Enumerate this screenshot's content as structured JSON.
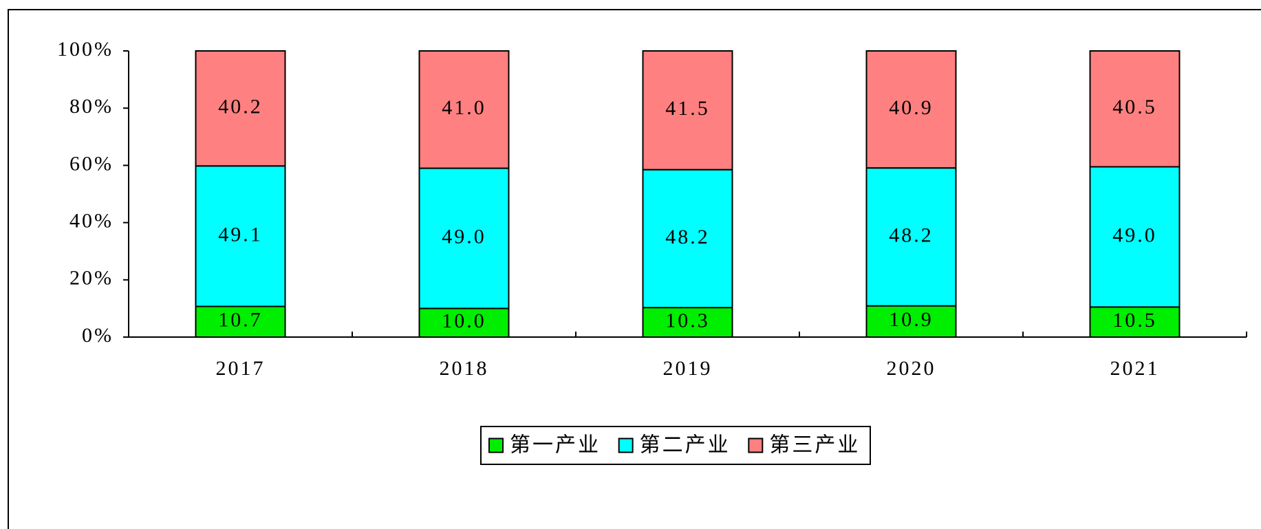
{
  "chart_data": {
    "type": "stacked_bar",
    "categories": [
      "2017",
      "2018",
      "2019",
      "2020",
      "2021"
    ],
    "series": [
      {
        "name": "第一产业",
        "color": "#00ee00",
        "values": [
          10.7,
          10.0,
          10.3,
          10.9,
          10.5
        ],
        "value_labels": [
          "10.7",
          "10.0",
          "10.3",
          "10.9",
          "10.5"
        ]
      },
      {
        "name": "第二产业",
        "color": "#00ffff",
        "values": [
          49.1,
          49.0,
          48.2,
          48.2,
          49.0
        ],
        "value_labels": [
          "49.1",
          "49.0",
          "48.2",
          "48.2",
          "49.0"
        ]
      },
      {
        "name": "第三产业",
        "color": "#ff8080",
        "values": [
          40.2,
          41.0,
          41.5,
          40.9,
          40.5
        ],
        "value_labels": [
          "40.2",
          "41.0",
          "41.5",
          "40.9",
          "40.5"
        ]
      }
    ],
    "ylim": [
      0,
      100
    ],
    "yticks": [
      {
        "value": 0,
        "label": "0%"
      },
      {
        "value": 20,
        "label": "20%"
      },
      {
        "value": 40,
        "label": "40%"
      },
      {
        "value": 60,
        "label": "60%"
      },
      {
        "value": 80,
        "label": "80%"
      },
      {
        "value": 100,
        "label": "100%"
      }
    ],
    "legend": "bottom"
  }
}
